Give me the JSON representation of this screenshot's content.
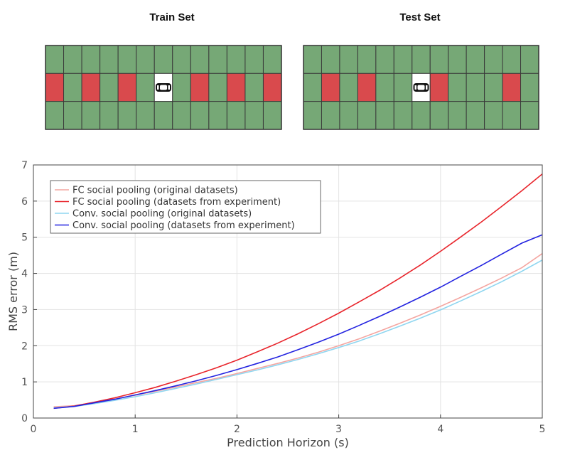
{
  "grids": {
    "train": {
      "title": "Train Set",
      "columns": 13,
      "red_cells": [
        0,
        2,
        4,
        8,
        10,
        12
      ],
      "car_cell": 6
    },
    "test": {
      "title": "Test Set",
      "columns": 13,
      "red_cells": [
        1,
        3,
        6,
        7,
        11
      ],
      "car_cell": 6
    },
    "colors": {
      "green": "#76a876",
      "red": "#d94a4d",
      "border": "#333333"
    }
  },
  "chart_data": {
    "type": "line",
    "title": "",
    "xlabel": "Prediction Horizon (s)",
    "ylabel": "RMS error (m)",
    "xlim": [
      0,
      5
    ],
    "ylim": [
      0,
      7
    ],
    "xticks": [
      0,
      1,
      2,
      3,
      4,
      5
    ],
    "yticks": [
      0,
      1,
      2,
      3,
      4,
      5,
      6,
      7
    ],
    "grid": true,
    "legend_position": "top-left",
    "x": [
      0.2,
      0.4,
      0.6,
      0.8,
      1.0,
      1.2,
      1.4,
      1.6,
      1.8,
      2.0,
      2.2,
      2.4,
      2.6,
      2.8,
      3.0,
      3.2,
      3.4,
      3.6,
      3.8,
      4.0,
      4.2,
      4.4,
      4.6,
      4.8,
      5.0
    ],
    "series": [
      {
        "name": "FC social pooling (original datasets)",
        "color": "#f4a5a0",
        "values": [
          0.31,
          0.34,
          0.43,
          0.53,
          0.63,
          0.74,
          0.86,
          0.98,
          1.1,
          1.23,
          1.37,
          1.51,
          1.66,
          1.82,
          2.0,
          2.19,
          2.4,
          2.62,
          2.85,
          3.09,
          3.34,
          3.6,
          3.87,
          4.16,
          4.55
        ]
      },
      {
        "name": "FC social pooling (datasets from experiment)",
        "color": "#e8242b",
        "values": [
          0.27,
          0.33,
          0.44,
          0.56,
          0.7,
          0.85,
          1.02,
          1.2,
          1.39,
          1.6,
          1.83,
          2.07,
          2.33,
          2.61,
          2.9,
          3.21,
          3.53,
          3.87,
          4.23,
          4.61,
          5.01,
          5.42,
          5.85,
          6.29,
          6.75
        ]
      },
      {
        "name": "Conv. social pooling (original datasets)",
        "color": "#8fd6f0",
        "values": [
          0.28,
          0.32,
          0.4,
          0.49,
          0.59,
          0.7,
          0.82,
          0.94,
          1.07,
          1.2,
          1.33,
          1.47,
          1.62,
          1.78,
          1.95,
          2.13,
          2.33,
          2.54,
          2.76,
          2.99,
          3.24,
          3.5,
          3.77,
          4.06,
          4.37
        ]
      },
      {
        "name": "Conv. social pooling (datasets from experiment)",
        "color": "#2323e0",
        "values": [
          0.27,
          0.32,
          0.42,
          0.52,
          0.64,
          0.76,
          0.89,
          1.03,
          1.18,
          1.34,
          1.51,
          1.69,
          1.89,
          2.1,
          2.32,
          2.56,
          2.81,
          3.07,
          3.34,
          3.62,
          3.92,
          4.22,
          4.53,
          4.84,
          5.07
        ]
      }
    ]
  }
}
